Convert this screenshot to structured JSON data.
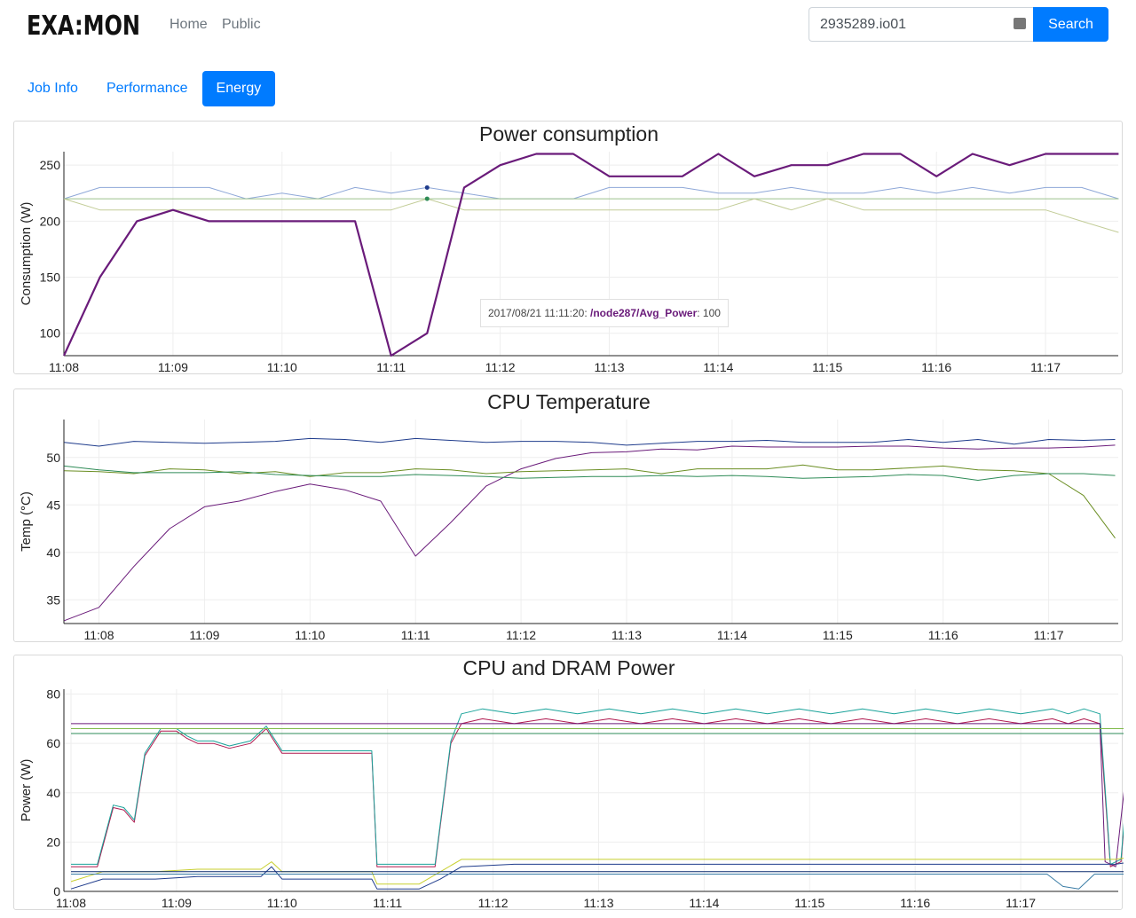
{
  "navbar": {
    "logo_text": "EXA:MON",
    "links": [
      "Home",
      "Public"
    ],
    "search_value": "2935289.io01",
    "search_button": "Search"
  },
  "tabs": [
    {
      "label": "Job Info",
      "active": false
    },
    {
      "label": "Performance",
      "active": false
    },
    {
      "label": "Energy",
      "active": true
    }
  ],
  "tooltip": {
    "time": "2017/08/21 11:11:20:",
    "series": "/node287/Avg_Power",
    "value": ": 100"
  },
  "colors": {
    "accent": "#007bff",
    "purple": "#6a1b7a",
    "blue_light": "#8fa8d8",
    "green_light": "#9bc28b",
    "olive_light": "#c2cc97",
    "navy": "#1f3c8c",
    "green": "#2e8b57",
    "olive": "#6b8e23",
    "teal": "#1aa39a",
    "crimson": "#b0194f"
  },
  "chart_data": [
    {
      "type": "line",
      "title": "Power consumption",
      "ylabel": "Consumption (W)",
      "xlabel": "",
      "xlim": [
        0,
        9.68
      ],
      "ylim": [
        80,
        262
      ],
      "yticks": [
        100,
        150,
        200,
        250
      ],
      "xtick_labels": [
        "11:08",
        "11:09",
        "11:10",
        "11:11",
        "11:12",
        "11:13",
        "11:14",
        "11:15",
        "11:16",
        "11:17"
      ],
      "series": [
        {
          "color": "#8fa8d8",
          "width": 1,
          "x": [
            0,
            0.33,
            0.67,
            1,
            1.33,
            1.67,
            2,
            2.33,
            2.67,
            3,
            3.33,
            3.67,
            4,
            4.33,
            4.67,
            5,
            5.33,
            5.67,
            6,
            6.33,
            6.67,
            7,
            7.33,
            7.67,
            8,
            8.33,
            8.67,
            9,
            9.33,
            9.67
          ],
          "values": [
            220,
            230,
            230,
            230,
            230,
            220,
            225,
            220,
            230,
            225,
            230,
            225,
            220,
            220,
            220,
            230,
            230,
            230,
            225,
            225,
            230,
            225,
            225,
            230,
            225,
            230,
            225,
            230,
            230,
            220
          ]
        },
        {
          "color": "#9bc28b",
          "width": 1,
          "x": [
            0,
            9.67
          ],
          "values": [
            220,
            220
          ]
        },
        {
          "color": "#c2cc97",
          "width": 1,
          "x": [
            0,
            0.33,
            0.67,
            1,
            1.33,
            1.67,
            2,
            2.33,
            2.67,
            3,
            3.33,
            3.67,
            4,
            4.33,
            4.67,
            5,
            5.33,
            5.67,
            6,
            6.33,
            6.67,
            7,
            7.33,
            7.67,
            8,
            8.33,
            8.67,
            9,
            9.33,
            9.67
          ],
          "values": [
            220,
            210,
            210,
            210,
            210,
            210,
            210,
            210,
            210,
            210,
            220,
            210,
            210,
            210,
            210,
            210,
            210,
            210,
            210,
            220,
            210,
            220,
            210,
            210,
            210,
            210,
            210,
            210,
            200,
            190
          ]
        },
        {
          "color": "#6a1b7a",
          "width": 2.2,
          "x": [
            0,
            0.33,
            0.67,
            1,
            1.33,
            1.67,
            2,
            2.33,
            2.67,
            3,
            3.33,
            3.67,
            4,
            4.33,
            4.67,
            5,
            5.33,
            5.67,
            6,
            6.33,
            6.67,
            7,
            7.33,
            7.67,
            8,
            8.33,
            8.67,
            9,
            9.33,
            9.67
          ],
          "values": [
            80,
            150,
            200,
            210,
            200,
            200,
            200,
            200,
            200,
            80,
            100,
            230,
            250,
            260,
            260,
            240,
            240,
            240,
            260,
            240,
            250,
            250,
            260,
            260,
            240,
            260,
            250,
            260,
            260,
            260
          ]
        }
      ],
      "highlight_points": [
        {
          "x": 3.33,
          "y": 230,
          "color": "#1f3c8c"
        },
        {
          "x": 3.33,
          "y": 220,
          "color": "#2e8b57"
        }
      ]
    },
    {
      "type": "line",
      "title": "CPU Temperature",
      "ylabel": "Temp (°C)",
      "xlabel": "",
      "xlim": [
        -0.33,
        9.65
      ],
      "ylim": [
        32.5,
        54
      ],
      "yticks": [
        35,
        40,
        45,
        50
      ],
      "xtick_labels": [
        "11:08",
        "11:09",
        "11:10",
        "11:11",
        "11:12",
        "11:13",
        "11:14",
        "11:15",
        "11:16",
        "11:17"
      ],
      "series": [
        {
          "color": "#1f3c8c",
          "width": 1,
          "x": [
            -0.33,
            0,
            0.33,
            0.67,
            1,
            1.33,
            1.67,
            2,
            2.33,
            2.67,
            3,
            3.33,
            3.67,
            4,
            4.33,
            4.67,
            5,
            5.33,
            5.67,
            6,
            6.33,
            6.67,
            7,
            7.33,
            7.67,
            8,
            8.33,
            8.67,
            9,
            9.33,
            9.63
          ],
          "values": [
            51.6,
            51.2,
            51.7,
            51.6,
            51.5,
            51.6,
            51.7,
            52.0,
            51.9,
            51.6,
            52.0,
            51.8,
            51.6,
            51.7,
            51.7,
            51.6,
            51.3,
            51.5,
            51.7,
            51.7,
            51.8,
            51.6,
            51.6,
            51.6,
            51.9,
            51.6,
            51.9,
            51.4,
            51.9,
            51.8,
            51.9
          ]
        },
        {
          "color": "#6a1b7a",
          "width": 1,
          "x": [
            -0.33,
            0,
            0.33,
            0.67,
            1,
            1.33,
            1.67,
            2,
            2.33,
            2.67,
            3,
            3.33,
            3.67,
            4,
            4.33,
            4.67,
            5,
            5.33,
            5.67,
            6,
            6.33,
            6.67,
            7,
            7.33,
            7.67,
            8,
            8.33,
            8.67,
            9,
            9.33,
            9.63
          ],
          "values": [
            32.8,
            34.2,
            38.5,
            42.5,
            44.8,
            45.4,
            46.4,
            47.2,
            46.6,
            45.4,
            39.6,
            43.1,
            47.0,
            48.8,
            49.9,
            50.5,
            50.6,
            50.9,
            50.8,
            51.2,
            51.1,
            51.1,
            51.1,
            51.2,
            51.2,
            51.0,
            50.9,
            51.0,
            51.0,
            51.1,
            51.3
          ]
        },
        {
          "color": "#6b8e23",
          "width": 1,
          "x": [
            -0.33,
            0,
            0.33,
            0.67,
            1,
            1.33,
            1.67,
            2,
            2.33,
            2.67,
            3,
            3.33,
            3.67,
            4,
            4.33,
            4.67,
            5,
            5.33,
            5.67,
            6,
            6.33,
            6.67,
            7,
            7.33,
            7.67,
            8,
            8.33,
            8.67,
            9,
            9.33,
            9.63
          ],
          "values": [
            48.6,
            48.5,
            48.3,
            48.8,
            48.7,
            48.3,
            48.5,
            48.0,
            48.4,
            48.4,
            48.8,
            48.7,
            48.3,
            48.5,
            48.6,
            48.7,
            48.8,
            48.3,
            48.8,
            48.8,
            48.8,
            49.2,
            48.7,
            48.7,
            48.9,
            49.1,
            48.7,
            48.6,
            48.3,
            46.0,
            41.5
          ]
        },
        {
          "color": "#2e8b57",
          "width": 1,
          "x": [
            -0.33,
            0,
            0.33,
            0.67,
            1,
            1.33,
            1.67,
            2,
            2.33,
            2.67,
            3,
            3.33,
            3.67,
            4,
            4.33,
            4.67,
            5,
            5.33,
            5.67,
            6,
            6.33,
            6.67,
            7,
            7.33,
            7.67,
            8,
            8.33,
            8.67,
            9,
            9.33,
            9.63
          ],
          "values": [
            49.1,
            48.7,
            48.4,
            48.4,
            48.4,
            48.5,
            48.2,
            48.1,
            48.0,
            48.0,
            48.2,
            48.1,
            48.0,
            47.8,
            47.9,
            48.0,
            48.0,
            48.1,
            48.0,
            48.1,
            48.0,
            47.8,
            47.9,
            48.0,
            48.2,
            48.1,
            47.6,
            48.1,
            48.3,
            48.3,
            48.1
          ]
        }
      ]
    },
    {
      "type": "line",
      "title": "CPU and DRAM Power",
      "ylabel": "Power (W)",
      "xlabel": "",
      "xlim": [
        0,
        10.08
      ],
      "ylim": [
        0,
        82
      ],
      "yticks": [
        0,
        20,
        40,
        60,
        80
      ],
      "xtick_labels": [
        "11:08",
        "11:09",
        "11:10",
        "11:11",
        "11:12",
        "11:13",
        "11:14",
        "11:15",
        "11:16",
        "11:17"
      ],
      "series": [
        {
          "color": "#b0194f",
          "width": 1,
          "x": [
            0,
            0.15,
            0.25,
            0.4,
            0.5,
            0.6,
            0.7,
            0.85,
            1.0,
            1.1,
            1.2,
            1.35,
            1.5,
            1.7,
            1.85,
            2.0,
            2.5,
            2.85,
            2.9,
            3.1,
            3.3,
            3.45,
            3.6,
            3.7,
            3.9,
            4.2,
            4.5,
            4.8,
            5.1,
            5.4,
            5.7,
            6.0,
            6.3,
            6.6,
            6.9,
            7.2,
            7.5,
            7.8,
            8.1,
            8.4,
            8.7,
            9.0,
            9.3,
            9.45,
            9.6,
            9.75,
            9.85,
            9.95,
            10.05
          ],
          "values": [
            10,
            10,
            10,
            34,
            33,
            28,
            55,
            65,
            65,
            62,
            60,
            60,
            58,
            60,
            66,
            56,
            56,
            56,
            10,
            10,
            10,
            10,
            60,
            68,
            70,
            68,
            70,
            68,
            70,
            68,
            70,
            68,
            70,
            68,
            70,
            68,
            70,
            68,
            70,
            68,
            70,
            68,
            70,
            68,
            70,
            68,
            10,
            12,
            62
          ]
        },
        {
          "color": "#1aa39a",
          "width": 1,
          "x": [
            0,
            0.15,
            0.25,
            0.4,
            0.5,
            0.6,
            0.7,
            0.85,
            1.0,
            1.1,
            1.2,
            1.35,
            1.5,
            1.7,
            1.85,
            2.0,
            2.5,
            2.85,
            2.9,
            3.1,
            3.3,
            3.45,
            3.6,
            3.7,
            3.9,
            4.2,
            4.5,
            4.8,
            5.1,
            5.4,
            5.7,
            6.0,
            6.3,
            6.6,
            6.9,
            7.2,
            7.5,
            7.8,
            8.1,
            8.4,
            8.7,
            9.0,
            9.3,
            9.45,
            9.6,
            9.75,
            9.85,
            9.95,
            10.05
          ],
          "values": [
            11,
            11,
            11,
            35,
            34,
            29,
            56,
            66,
            66,
            63,
            61,
            61,
            59,
            61,
            67,
            57,
            57,
            57,
            11,
            11,
            11,
            11,
            61,
            72,
            74,
            72,
            74,
            72,
            74,
            72,
            74,
            72,
            74,
            72,
            74,
            72,
            74,
            72,
            74,
            72,
            74,
            72,
            74,
            72,
            74,
            72,
            11,
            13,
            65
          ]
        },
        {
          "color": "#6a1b7a",
          "width": 1,
          "x": [
            0,
            1.0,
            2.0,
            3.0,
            4.0,
            5.0,
            6.0,
            7.0,
            8.0,
            9.0,
            9.75,
            9.8,
            9.9,
            10.05
          ],
          "values": [
            68,
            68,
            68,
            68,
            68,
            68,
            68,
            68,
            68,
            68,
            68,
            12,
            10,
            68
          ]
        },
        {
          "color": "#2e8b57",
          "width": 1,
          "x": [
            0,
            1.0,
            2.0,
            3.0,
            4.0,
            5.0,
            6.0,
            7.0,
            8.0,
            9.0,
            10.05
          ],
          "values": [
            64,
            64,
            64,
            64,
            64,
            64,
            64,
            64,
            64,
            64,
            64
          ]
        },
        {
          "color": "#7fba4a",
          "width": 1,
          "x": [
            0,
            1.0,
            2.0,
            3.0,
            4.0,
            5.0,
            6.0,
            7.0,
            8.0,
            9.0,
            10.05
          ],
          "values": [
            66,
            66,
            66,
            66,
            66,
            66,
            66,
            66,
            66,
            66,
            66
          ]
        },
        {
          "color": "#c8cf2e",
          "width": 1,
          "x": [
            0,
            0.3,
            0.8,
            1.2,
            1.8,
            1.9,
            2.0,
            2.85,
            2.9,
            3.3,
            3.5,
            3.7,
            4.2,
            5.0,
            6.0,
            7.0,
            8.0,
            9.0,
            9.9,
            10.05
          ],
          "values": [
            4,
            8,
            8,
            9,
            9,
            12,
            8,
            8,
            3,
            3,
            8,
            13,
            13,
            13,
            13,
            13,
            13,
            13,
            13,
            14
          ]
        },
        {
          "color": "#1f3c8c",
          "width": 1,
          "x": [
            0,
            0.3,
            0.8,
            1.2,
            1.8,
            1.9,
            2.0,
            2.85,
            2.9,
            3.3,
            3.5,
            3.7,
            4.2,
            5.0,
            6.0,
            7.0,
            8.0,
            9.0,
            9.9,
            10.05
          ],
          "values": [
            1,
            5,
            5,
            6,
            6,
            10,
            5,
            5,
            1,
            1,
            5,
            10,
            11,
            11,
            11,
            11,
            11,
            11,
            11,
            12
          ]
        },
        {
          "color": "#3a7ca5",
          "width": 1,
          "x": [
            0,
            9.0,
            9.25,
            9.4,
            9.55,
            9.7,
            10.05
          ],
          "values": [
            7,
            7,
            7,
            2,
            1,
            7,
            7
          ]
        },
        {
          "color": "#0a2a6e",
          "width": 1,
          "x": [
            0,
            10.05
          ],
          "values": [
            8,
            8
          ]
        }
      ]
    }
  ]
}
